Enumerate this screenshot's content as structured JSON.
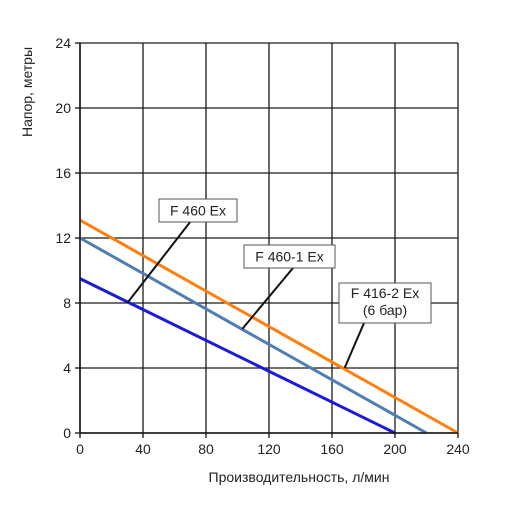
{
  "chart_data": {
    "type": "line",
    "xlabel": "Производительность, л/мин",
    "ylabel": "Напор, метры",
    "xlim": [
      0,
      240
    ],
    "ylim": [
      0,
      24
    ],
    "x_ticks": [
      0,
      40,
      80,
      120,
      160,
      200,
      240
    ],
    "y_ticks": [
      0,
      4,
      8,
      12,
      16,
      20,
      24
    ],
    "grid": true,
    "series": [
      {
        "name": "F 460 Ex",
        "color": "#1a1adb",
        "x": [
          0,
          200
        ],
        "y": [
          9.5,
          0
        ]
      },
      {
        "name": "F 460-1 Ex",
        "color": "#4f7db5",
        "x": [
          0,
          220
        ],
        "y": [
          12,
          0
        ]
      },
      {
        "name": "F 416-2 Ex (6 бар)",
        "color": "#ff7f0e",
        "x": [
          0,
          240
        ],
        "y": [
          13.1,
          0
        ]
      }
    ],
    "annotations": [
      {
        "series": 0,
        "lines": [
          "F 460 Ex"
        ],
        "point": [
          30,
          8.0
        ]
      },
      {
        "series": 1,
        "lines": [
          "F 460-1 Ex"
        ],
        "point": [
          103,
          6.4
        ]
      },
      {
        "series": 2,
        "lines": [
          "F 416-2 Ex",
          "(6 бар)"
        ],
        "point": [
          168,
          4.0
        ]
      }
    ]
  }
}
